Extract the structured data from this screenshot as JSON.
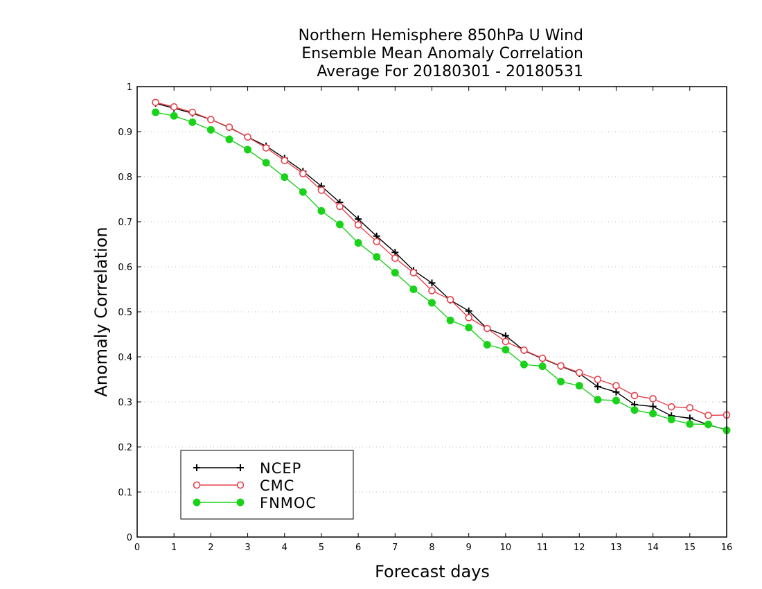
{
  "chart_data": {
    "type": "line",
    "title": [
      "Northern Hemisphere 850hPa U Wind",
      "Ensemble Mean Anomaly Correlation",
      "Average For 20180301 - 20180531"
    ],
    "xlabel": "Forecast days",
    "ylabel": "Anomaly Correlation",
    "xlim": [
      0,
      16
    ],
    "ylim": [
      0,
      1
    ],
    "xticks": [
      "0",
      "1",
      "2",
      "3",
      "4",
      "5",
      "6",
      "7",
      "8",
      "9",
      "10",
      "11",
      "12",
      "13",
      "14",
      "15",
      "16"
    ],
    "yticks": [
      "0",
      "0.1",
      "0.2",
      "0.3",
      "0.4",
      "0.5",
      "0.6",
      "0.7",
      "0.8",
      "0.9",
      "1"
    ],
    "grid": true,
    "legend_position": "bottom-left",
    "x": [
      0.5,
      1,
      1.5,
      2,
      2.5,
      3,
      3.5,
      4,
      4.5,
      5,
      5.5,
      6,
      6.5,
      7,
      7.5,
      8,
      8.5,
      9,
      9.5,
      10,
      10.5,
      11,
      11.5,
      12,
      12.5,
      13,
      13.5,
      14,
      14.5,
      15,
      15.5,
      16
    ],
    "series": [
      {
        "name": "NCEP",
        "color": "#000000",
        "marker": "plus",
        "values": [
          0.963,
          0.952,
          0.941,
          0.927,
          0.909,
          0.888,
          0.868,
          0.841,
          0.812,
          0.779,
          0.743,
          0.706,
          0.668,
          0.632,
          0.592,
          0.564,
          0.526,
          0.502,
          0.463,
          0.447,
          0.414,
          0.396,
          0.379,
          0.363,
          0.334,
          0.322,
          0.294,
          0.29,
          0.269,
          0.264,
          0.249,
          0.238
        ]
      },
      {
        "name": "CMC",
        "color": "#e8404a",
        "marker": "open-circle",
        "values": [
          0.965,
          0.955,
          0.943,
          0.927,
          0.91,
          0.888,
          0.864,
          0.836,
          0.807,
          0.77,
          0.734,
          0.693,
          0.656,
          0.619,
          0.587,
          0.547,
          0.527,
          0.487,
          0.463,
          0.434,
          0.415,
          0.397,
          0.38,
          0.365,
          0.35,
          0.336,
          0.314,
          0.307,
          0.289,
          0.287,
          0.27,
          0.271
        ]
      },
      {
        "name": "FNMOC",
        "color": "#1ad21a",
        "marker": "filled-circle",
        "values": [
          0.943,
          0.935,
          0.921,
          0.904,
          0.883,
          0.86,
          0.831,
          0.799,
          0.766,
          0.724,
          0.694,
          0.653,
          0.622,
          0.587,
          0.55,
          0.52,
          0.481,
          0.465,
          0.427,
          0.416,
          0.383,
          0.379,
          0.345,
          0.336,
          0.305,
          0.303,
          0.282,
          0.274,
          0.261,
          0.251,
          0.25,
          0.237
        ]
      }
    ]
  }
}
